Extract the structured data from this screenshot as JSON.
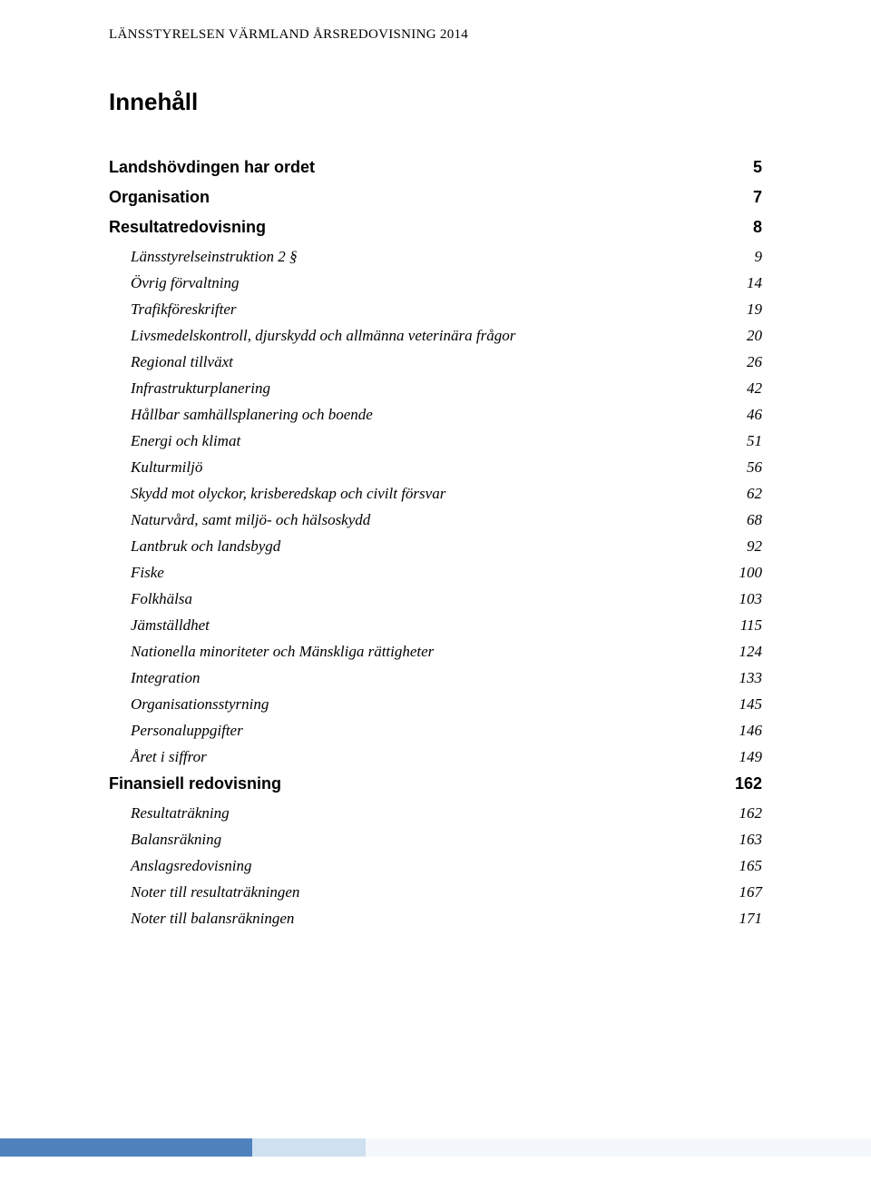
{
  "header": "LÄNSSTYRELSEN VÄRMLAND ÅRSREDOVISNING 2014",
  "toc_title": "Innehåll",
  "sections": [
    {
      "label": "Landshövdingen har ordet",
      "page": "5",
      "sub": []
    },
    {
      "label": "Organisation",
      "page": "7",
      "sub": []
    },
    {
      "label": "Resultatredovisning",
      "page": "8",
      "sub": [
        {
          "label": "Länsstyrelseinstruktion 2 §",
          "page": "9"
        },
        {
          "label": "Övrig förvaltning",
          "page": "14"
        },
        {
          "label": "Trafikföreskrifter",
          "page": "19"
        },
        {
          "label": "Livsmedelskontroll, djurskydd och allmänna veterinära frågor",
          "page": "20"
        },
        {
          "label": "Regional tillväxt",
          "page": "26"
        },
        {
          "label": "Infrastrukturplanering",
          "page": "42"
        },
        {
          "label": "Hållbar samhällsplanering och boende",
          "page": "46"
        },
        {
          "label": "Energi och klimat",
          "page": "51"
        },
        {
          "label": "Kulturmiljö",
          "page": "56"
        },
        {
          "label": "Skydd mot olyckor, krisberedskap och civilt försvar",
          "page": "62"
        },
        {
          "label": "Naturvård, samt miljö- och hälsoskydd",
          "page": "68"
        },
        {
          "label": "Lantbruk och landsbygd",
          "page": "92"
        },
        {
          "label": "Fiske",
          "page": "100"
        },
        {
          "label": "Folkhälsa",
          "page": "103"
        },
        {
          "label": "Jämställdhet",
          "page": "115"
        },
        {
          "label": "Nationella minoriteter och Mänskliga rättigheter",
          "page": "124"
        },
        {
          "label": "Integration",
          "page": "133"
        },
        {
          "label": "Organisationsstyrning",
          "page": "145"
        },
        {
          "label": "Personaluppgifter",
          "page": "146"
        },
        {
          "label": "Året i siffror",
          "page": "149"
        }
      ]
    },
    {
      "label": "Finansiell redovisning",
      "page": "162",
      "sub": [
        {
          "label": "Resultaträkning",
          "page": "162"
        },
        {
          "label": "Balansräkning",
          "page": "163"
        },
        {
          "label": "Anslagsredovisning",
          "page": "165"
        },
        {
          "label": "Noter till resultaträkningen",
          "page": "167"
        },
        {
          "label": "Noter till balansräkningen",
          "page": "171"
        }
      ]
    }
  ],
  "footer_colors": {
    "left": "#4f81bd",
    "mid": "#cfe0f0",
    "right": "#f4f8fc"
  }
}
